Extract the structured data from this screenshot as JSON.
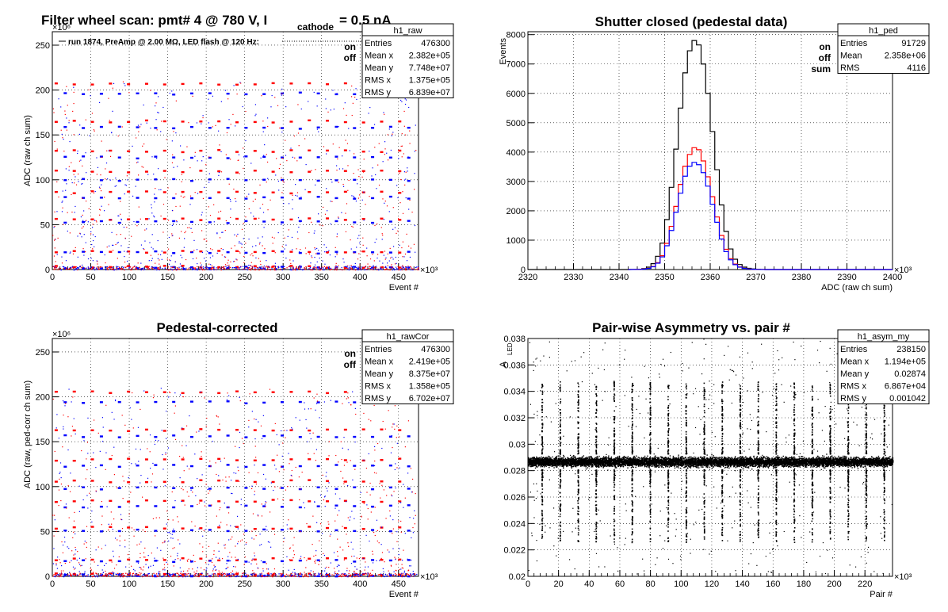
{
  "colors": {
    "on": "#ff0000",
    "off": "#0000ff",
    "sum": "#000000",
    "grid": "#000000"
  },
  "chart_data": [
    {
      "type": "scatter",
      "title_main": "Filter wheel scan: pmt#   4 @   780 V, I",
      "title_sub": "cathode",
      "title_tail": "= 0.5 nA",
      "annotation": "run 1874, PreAmp @ 2.00 MΩ, LED flash @  120 Hz:",
      "xlabel": "Event #",
      "ylabel": "ADC (raw ch sum)",
      "x_exponent": "×10³",
      "y_exponent": "×10⁶",
      "xlim": [
        0,
        476
      ],
      "ylim": [
        0,
        265
      ],
      "xticks": [
        0,
        50,
        100,
        150,
        200,
        250,
        300,
        350,
        400,
        450
      ],
      "yticks": [
        0,
        50,
        100,
        150,
        200,
        250
      ],
      "legend": [
        {
          "name": "on",
          "color": "#ff0000"
        },
        {
          "name": "off",
          "color": "#0000ff"
        }
      ],
      "stats": {
        "name": "h1_raw",
        "rows": [
          [
            "Entries",
            "476300"
          ],
          [
            "Mean x",
            "2.382e+05"
          ],
          [
            "Mean y",
            "7.748e+07"
          ],
          [
            "RMS x",
            "1.375e+05"
          ],
          [
            "RMS y",
            "6.839e+07"
          ]
        ]
      },
      "scan_period": 23.5,
      "levels_on": [
        207,
        165,
        132,
        109,
        86,
        56,
        20,
        3
      ],
      "levels_off": [
        196,
        158,
        125,
        100,
        80,
        53,
        19,
        2
      ]
    },
    {
      "type": "histogram",
      "title": "Shutter closed (pedestal data)",
      "xlabel": "ADC (raw ch sum)",
      "ylabel": "Events",
      "x_exponent": "×10³",
      "xlim": [
        2320,
        2400
      ],
      "ylim": [
        0,
        8100
      ],
      "xticks": [
        2320,
        2330,
        2340,
        2350,
        2360,
        2370,
        2380,
        2390,
        2400
      ],
      "yticks": [
        0,
        1000,
        2000,
        3000,
        4000,
        5000,
        6000,
        7000,
        8000
      ],
      "legend": [
        {
          "name": "on",
          "color": "#ff0000"
        },
        {
          "name": "off",
          "color": "#0000ff"
        },
        {
          "name": "sum",
          "color": "#000000"
        }
      ],
      "stats": {
        "name": "h1_ped",
        "rows": [
          [
            "Entries",
            "91729"
          ],
          [
            "Mean",
            "2.358e+06"
          ],
          [
            "RMS",
            "4116"
          ]
        ]
      },
      "bin_width": 1,
      "bin_start": 2344,
      "series": [
        {
          "name": "sum",
          "color": "#000000",
          "values": [
            10,
            30,
            80,
            200,
            450,
            900,
            1700,
            2800,
            4100,
            5500,
            6700,
            7450,
            7800,
            7650,
            7000,
            6000,
            4700,
            3400,
            2200,
            1300,
            700,
            350,
            170,
            80,
            40,
            20,
            10,
            5
          ]
        },
        {
          "name": "on",
          "color": "#ff0000",
          "values": [
            5,
            16,
            42,
            105,
            235,
            470,
            890,
            1470,
            2150,
            2900,
            3520,
            3920,
            4150,
            4080,
            3700,
            3160,
            2480,
            1790,
            1160,
            690,
            370,
            185,
            90,
            42,
            21,
            10,
            5,
            3
          ]
        },
        {
          "name": "off",
          "color": "#0000ff",
          "values": [
            5,
            14,
            38,
            95,
            215,
            430,
            810,
            1330,
            1950,
            2600,
            3180,
            3520,
            3650,
            3570,
            3300,
            2840,
            2220,
            1610,
            1040,
            610,
            330,
            165,
            80,
            38,
            19,
            10,
            5,
            2
          ]
        }
      ]
    },
    {
      "type": "scatter",
      "title": "Pedestal-corrected",
      "xlabel": "Event #",
      "ylabel": "ADC (raw, ped-corr ch sum)",
      "x_exponent": "×10³",
      "y_exponent": "×10⁶",
      "xlim": [
        0,
        476
      ],
      "ylim": [
        0,
        265
      ],
      "xticks": [
        0,
        50,
        100,
        150,
        200,
        250,
        300,
        350,
        400,
        450
      ],
      "yticks": [
        0,
        50,
        100,
        150,
        200,
        250
      ],
      "legend": [
        {
          "name": "on",
          "color": "#ff0000"
        },
        {
          "name": "off",
          "color": "#0000ff"
        }
      ],
      "stats": {
        "name": "h1_rawCor",
        "rows": [
          [
            "Entries",
            "476300"
          ],
          [
            "Mean x",
            "2.419e+05"
          ],
          [
            "Mean y",
            "8.375e+07"
          ],
          [
            "RMS x",
            "1.358e+05"
          ],
          [
            "RMS y",
            "6.702e+07"
          ]
        ]
      },
      "scan_period": 23.5,
      "levels_on": [
        205,
        163,
        130,
        106,
        84,
        54,
        19,
        2
      ],
      "levels_off": [
        194,
        156,
        123,
        98,
        78,
        51,
        17,
        1
      ]
    },
    {
      "type": "scatter",
      "title": "Pair-wise Asymmetry vs. pair #",
      "xlabel": "Pair #",
      "ylabel": "A",
      "ylabel_sub": "LED",
      "x_exponent": "×10³",
      "xlim": [
        0,
        238
      ],
      "ylim": [
        0.02,
        0.038
      ],
      "xticks": [
        0,
        20,
        40,
        60,
        80,
        100,
        120,
        140,
        160,
        180,
        200,
        220
      ],
      "yticks": [
        0.02,
        0.022,
        0.024,
        0.026,
        0.028,
        0.03,
        0.032,
        0.034,
        0.036,
        0.038
      ],
      "stats": {
        "name": "h1_asym_my",
        "rows": [
          [
            "Entries",
            "238150"
          ],
          [
            "Mean x",
            "1.194e+05"
          ],
          [
            "Mean y",
            "0.02874"
          ],
          [
            "RMS x",
            "6.867e+04"
          ],
          [
            "RMS y",
            "0.001042"
          ]
        ]
      },
      "band_center": 0.0287,
      "band_halfwidth": 0.0008,
      "spike_period": 11.75
    }
  ]
}
